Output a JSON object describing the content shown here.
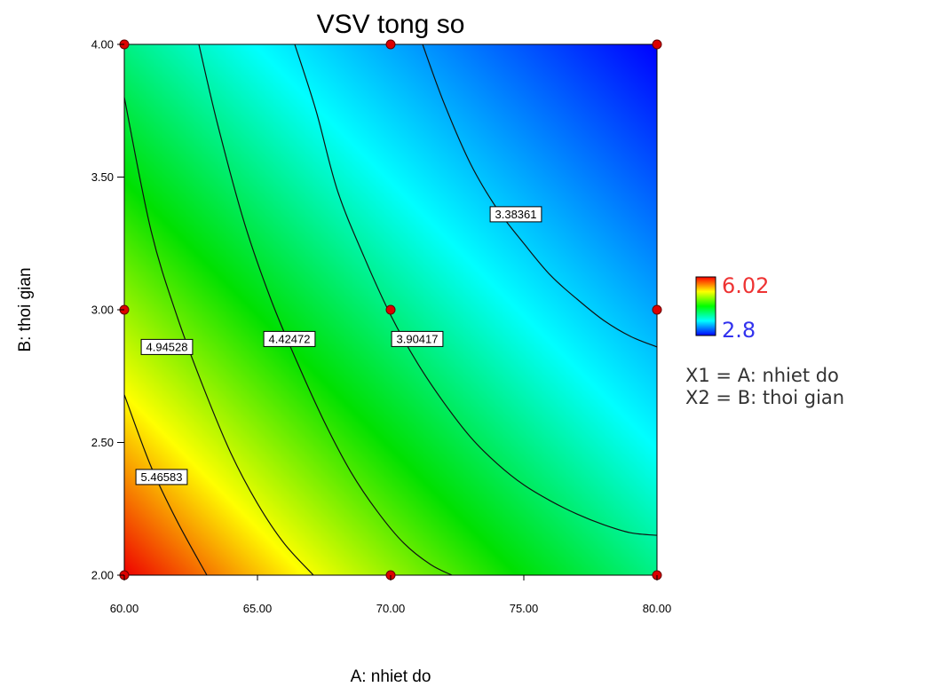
{
  "chart_data": {
    "type": "contour",
    "title": "VSV tong so",
    "xlabel": "A: nhiet do",
    "ylabel": "B: thoi gian",
    "xlim": [
      60,
      80
    ],
    "ylim": [
      2,
      4
    ],
    "x_ticks": [
      "60.00",
      "65.00",
      "70.00",
      "75.00",
      "80.00"
    ],
    "y_ticks": [
      "2.00",
      "2.50",
      "3.00",
      "3.50",
      "4.00"
    ],
    "color_scale": {
      "max": "6.02",
      "min": "2.8",
      "colors": [
        "#0000ff",
        "#00ffff",
        "#00ff00",
        "#ffff00",
        "#ff0000"
      ]
    },
    "contours": [
      {
        "label": "5.46583",
        "points": [
          [
            60.0,
            2.68
          ],
          [
            61.0,
            2.41
          ],
          [
            62.0,
            2.2
          ],
          [
            63.1,
            2.0
          ]
        ],
        "label_at": [
          61.4,
          2.37
        ]
      },
      {
        "label": "4.94528",
        "points": [
          [
            60.0,
            3.8
          ],
          [
            61.0,
            3.3
          ],
          [
            62.0,
            2.97
          ],
          [
            63.0,
            2.7
          ],
          [
            64.0,
            2.46
          ],
          [
            65.0,
            2.27
          ],
          [
            66.0,
            2.12
          ],
          [
            67.1,
            2.0
          ]
        ],
        "label_at": [
          61.6,
          2.86
        ]
      },
      {
        "label": "4.42472",
        "points": [
          [
            62.8,
            4.0
          ],
          [
            63.5,
            3.7
          ],
          [
            64.5,
            3.33
          ],
          [
            65.5,
            3.04
          ],
          [
            66.5,
            2.8
          ],
          [
            67.5,
            2.58
          ],
          [
            68.5,
            2.39
          ],
          [
            69.5,
            2.24
          ],
          [
            70.5,
            2.12
          ],
          [
            71.5,
            2.04
          ],
          [
            72.3,
            2.0
          ]
        ],
        "label_at": [
          66.2,
          2.89
        ]
      },
      {
        "label": "3.90417",
        "points": [
          [
            66.4,
            4.0
          ],
          [
            67.2,
            3.75
          ],
          [
            68.0,
            3.45
          ],
          [
            69.0,
            3.2
          ],
          [
            70.0,
            2.98
          ],
          [
            71.0,
            2.8
          ],
          [
            72.0,
            2.65
          ],
          [
            73.0,
            2.52
          ],
          [
            74.0,
            2.42
          ],
          [
            75.0,
            2.34
          ],
          [
            76.0,
            2.28
          ],
          [
            77.0,
            2.23
          ],
          [
            78.0,
            2.19
          ],
          [
            79.0,
            2.16
          ],
          [
            80.0,
            2.15
          ]
        ],
        "label_at": [
          71.0,
          2.89
        ]
      },
      {
        "label": "3.38361",
        "points": [
          [
            71.2,
            4.0
          ],
          [
            72.0,
            3.78
          ],
          [
            73.0,
            3.55
          ],
          [
            74.0,
            3.38
          ],
          [
            75.0,
            3.25
          ],
          [
            76.0,
            3.13
          ],
          [
            77.0,
            3.04
          ],
          [
            78.0,
            2.96
          ],
          [
            79.0,
            2.9
          ],
          [
            80.0,
            2.86
          ]
        ],
        "label_at": [
          74.7,
          3.36
        ]
      }
    ],
    "design_points": [
      [
        60,
        2
      ],
      [
        70,
        2
      ],
      [
        80,
        2
      ],
      [
        60,
        3
      ],
      [
        70,
        3
      ],
      [
        80,
        3
      ],
      [
        60,
        4
      ],
      [
        70,
        4
      ],
      [
        80,
        4
      ]
    ],
    "legend_text": [
      "X1 = A: nhiet do",
      "X2 = B: thoi gian"
    ],
    "grid": false
  }
}
